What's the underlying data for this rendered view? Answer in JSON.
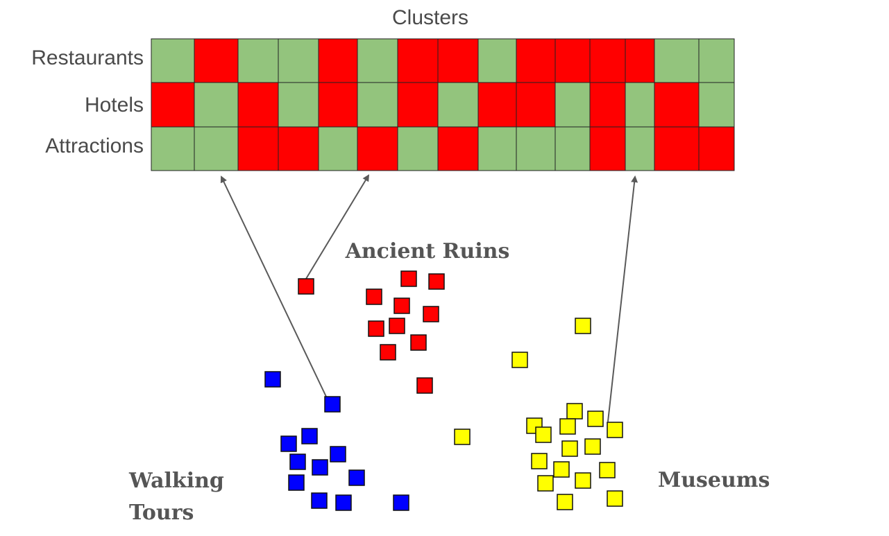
{
  "heatmap": {
    "title": "Clusters",
    "rows": [
      {
        "label": "Restaurants",
        "cells": [
          0,
          1,
          0,
          0,
          1,
          0,
          1,
          1,
          0,
          1,
          1,
          1,
          1,
          0,
          0
        ]
      },
      {
        "label": "Hotels",
        "cells": [
          1,
          0,
          1,
          0,
          1,
          0,
          1,
          0,
          1,
          1,
          0,
          1,
          0,
          1,
          0
        ]
      },
      {
        "label": "Attractions",
        "cells": [
          0,
          0,
          1,
          1,
          0,
          1,
          0,
          1,
          0,
          0,
          0,
          1,
          0,
          1,
          1
        ]
      }
    ],
    "colors": {
      "active": "#ff0000",
      "inactive": "#93c47d",
      "grid": "#222222"
    }
  },
  "clusters": [
    {
      "label": "Ancient Ruins",
      "color": "#ff0000"
    },
    {
      "label": "Walking Tours",
      "color": "#0000ff"
    },
    {
      "label": "Museums",
      "color": "#ffff00"
    }
  ],
  "colors": {
    "arrow": "#595959",
    "marker_border": "#111111"
  }
}
